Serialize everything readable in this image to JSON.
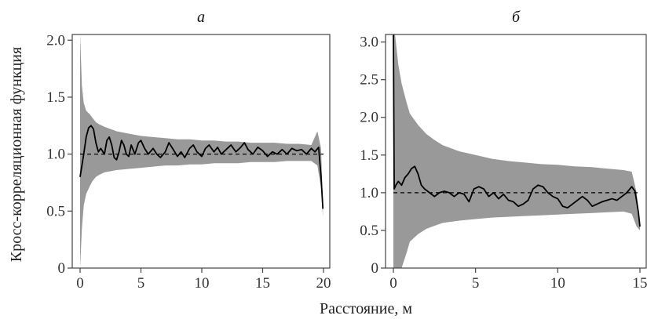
{
  "figure": {
    "xlabel": "Расстояние, м",
    "ylabel": "Кросс-корреляционная функция"
  },
  "colors": {
    "band": "#999999",
    "line": "#000000",
    "reference": "#000000",
    "axes": "#444444"
  },
  "chart_data": [
    {
      "type": "line",
      "title": "а",
      "xlim": [
        0,
        20
      ],
      "ylim": [
        0,
        2.05
      ],
      "xticks": [
        0,
        5,
        10,
        15,
        20
      ],
      "xtick_labels": [
        "0",
        "5",
        "10",
        "15",
        "20"
      ],
      "yticks": [
        0,
        0.5,
        1.0,
        1.5,
        2.0
      ],
      "ytick_labels": [
        "0",
        "0.5",
        "1.0",
        "1.5",
        "2.0"
      ],
      "reference_line": 1.0,
      "series": [
        {
          "kind": "line",
          "x": [
            0,
            0.15,
            0.3,
            0.5,
            0.7,
            0.9,
            1.1,
            1.3,
            1.5,
            1.7,
            2.0,
            2.2,
            2.4,
            2.6,
            2.8,
            3.0,
            3.2,
            3.4,
            3.6,
            3.8,
            4.0,
            4.2,
            4.5,
            4.8,
            5.0,
            5.3,
            5.6,
            6.0,
            6.3,
            6.6,
            7.0,
            7.3,
            7.6,
            8.0,
            8.3,
            8.6,
            9.0,
            9.3,
            9.6,
            10.0,
            10.3,
            10.6,
            11.0,
            11.3,
            11.6,
            12.0,
            12.4,
            12.8,
            13.2,
            13.5,
            13.8,
            14.2,
            14.6,
            15.0,
            15.4,
            15.8,
            16.2,
            16.6,
            17.0,
            17.4,
            17.8,
            18.2,
            18.6,
            19.0,
            19.3,
            19.6,
            19.8,
            19.95
          ],
          "y": [
            0.8,
            0.9,
            1.0,
            1.15,
            1.23,
            1.25,
            1.22,
            1.1,
            1.02,
            1.05,
            1.0,
            1.12,
            1.15,
            1.08,
            0.97,
            0.95,
            1.02,
            1.12,
            1.08,
            1.0,
            0.98,
            1.08,
            1.0,
            1.1,
            1.12,
            1.05,
            1.0,
            1.05,
            1.0,
            0.97,
            1.02,
            1.1,
            1.05,
            0.98,
            1.02,
            0.97,
            1.05,
            1.08,
            1.02,
            0.98,
            1.05,
            1.08,
            1.02,
            1.06,
            1.0,
            1.04,
            1.08,
            1.02,
            1.06,
            1.1,
            1.04,
            1.0,
            1.06,
            1.03,
            0.98,
            1.02,
            1.0,
            1.04,
            1.0,
            1.05,
            1.03,
            1.04,
            1.0,
            1.05,
            1.02,
            1.06,
            0.8,
            0.52
          ]
        },
        {
          "kind": "band",
          "x": [
            0,
            0.15,
            0.3,
            0.5,
            0.8,
            1.0,
            1.3,
            1.6,
            2.0,
            2.5,
            3.0,
            4.0,
            5.0,
            6.0,
            7.0,
            8.0,
            9.0,
            10.0,
            11.0,
            12.0,
            13.0,
            14.0,
            15.0,
            16.0,
            17.0,
            18.0,
            19.0,
            19.5,
            19.8,
            19.95
          ],
          "upper": [
            2.05,
            1.6,
            1.45,
            1.38,
            1.35,
            1.32,
            1.28,
            1.26,
            1.24,
            1.22,
            1.2,
            1.18,
            1.16,
            1.15,
            1.14,
            1.13,
            1.13,
            1.12,
            1.12,
            1.11,
            1.11,
            1.1,
            1.1,
            1.1,
            1.09,
            1.09,
            1.08,
            1.2,
            1.05,
            0.55
          ],
          "lower": [
            0.0,
            0.35,
            0.55,
            0.65,
            0.72,
            0.76,
            0.8,
            0.82,
            0.84,
            0.85,
            0.86,
            0.87,
            0.88,
            0.89,
            0.9,
            0.9,
            0.91,
            0.91,
            0.92,
            0.92,
            0.92,
            0.93,
            0.93,
            0.93,
            0.94,
            0.94,
            0.94,
            0.9,
            0.7,
            0.45
          ]
        }
      ]
    },
    {
      "type": "line",
      "title": "б",
      "xlim": [
        0,
        15
      ],
      "ylim": [
        0,
        3.1
      ],
      "xticks": [
        0,
        5,
        10,
        15
      ],
      "xtick_labels": [
        "0",
        "5",
        "10",
        "15"
      ],
      "yticks": [
        0,
        0.5,
        1.0,
        1.5,
        2.0,
        2.5,
        3.0
      ],
      "ytick_labels": [
        "0",
        "0.5",
        "1.0",
        "1.5",
        "2.0",
        "2.5",
        "3.0"
      ],
      "reference_line": 1.0,
      "series": [
        {
          "kind": "line",
          "x": [
            0,
            0.05,
            0.15,
            0.3,
            0.5,
            0.7,
            0.9,
            1.1,
            1.3,
            1.5,
            1.7,
            1.9,
            2.2,
            2.5,
            2.8,
            3.1,
            3.4,
            3.7,
            4.0,
            4.3,
            4.6,
            4.9,
            5.2,
            5.5,
            5.8,
            6.1,
            6.4,
            6.7,
            7.0,
            7.3,
            7.6,
            7.9,
            8.2,
            8.5,
            8.8,
            9.1,
            9.4,
            9.7,
            10.0,
            10.3,
            10.6,
            10.9,
            11.2,
            11.5,
            11.8,
            12.1,
            12.4,
            12.7,
            13.0,
            13.3,
            13.6,
            13.9,
            14.2,
            14.5,
            14.7,
            14.9,
            15.0
          ],
          "y": [
            3.1,
            1.05,
            1.1,
            1.15,
            1.1,
            1.2,
            1.25,
            1.32,
            1.35,
            1.25,
            1.1,
            1.05,
            1.0,
            0.95,
            1.0,
            1.02,
            1.0,
            0.95,
            1.0,
            0.98,
            0.88,
            1.05,
            1.08,
            1.05,
            0.95,
            1.0,
            0.92,
            0.98,
            0.9,
            0.88,
            0.82,
            0.85,
            0.9,
            1.05,
            1.1,
            1.08,
            1.0,
            0.95,
            0.92,
            0.82,
            0.8,
            0.85,
            0.9,
            0.95,
            0.9,
            0.82,
            0.85,
            0.88,
            0.9,
            0.92,
            0.9,
            0.95,
            1.0,
            1.08,
            1.02,
            0.75,
            0.55
          ]
        },
        {
          "kind": "band",
          "x": [
            0,
            0.1,
            0.3,
            0.5,
            0.8,
            1.0,
            1.5,
            2.0,
            2.5,
            3.0,
            4.0,
            5.0,
            6.0,
            7.0,
            8.0,
            9.0,
            10.0,
            11.0,
            12.0,
            13.0,
            14.0,
            14.5,
            14.8,
            15.0
          ],
          "upper": [
            3.1,
            3.1,
            2.7,
            2.45,
            2.2,
            2.05,
            1.9,
            1.78,
            1.7,
            1.63,
            1.55,
            1.5,
            1.45,
            1.42,
            1.4,
            1.38,
            1.37,
            1.35,
            1.34,
            1.32,
            1.3,
            1.28,
            1.0,
            0.6
          ],
          "lower": [
            0.0,
            0.0,
            0.0,
            0.0,
            0.2,
            0.35,
            0.45,
            0.52,
            0.56,
            0.6,
            0.63,
            0.65,
            0.67,
            0.68,
            0.69,
            0.7,
            0.71,
            0.72,
            0.73,
            0.74,
            0.75,
            0.72,
            0.55,
            0.5
          ]
        }
      ]
    }
  ]
}
